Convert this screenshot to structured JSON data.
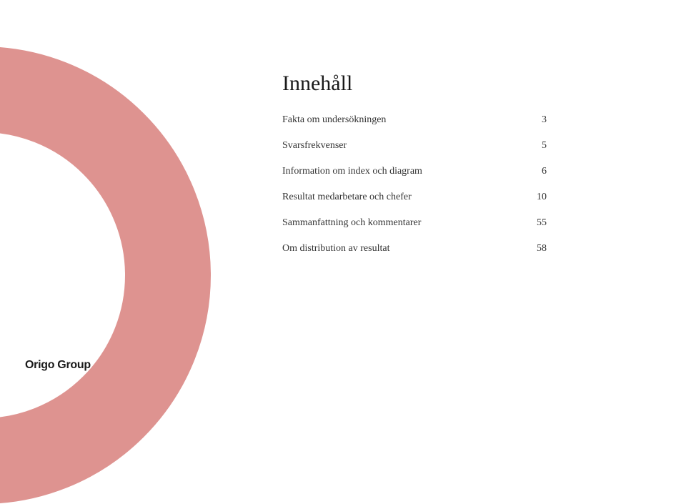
{
  "background_color": "#ffffff",
  "ring_color": "#de9390",
  "title": "Innehåll",
  "title_fontsize": 30,
  "toc_fontsize": 14,
  "text_color": "#333333",
  "toc": [
    {
      "label": "Fakta om undersökningen",
      "page": "3"
    },
    {
      "label": "Svarsfrekvenser",
      "page": "5"
    },
    {
      "label": "Information om index och diagram",
      "page": "6"
    },
    {
      "label": "Resultat medarbetare och chefer",
      "page": "10"
    },
    {
      "label": "Sammanfattning och kommentarer",
      "page": "55"
    },
    {
      "label": "Om distribution av resultat",
      "page": "58"
    }
  ],
  "logo_text": "Origo Group",
  "logo_color": "#1a1a1a"
}
